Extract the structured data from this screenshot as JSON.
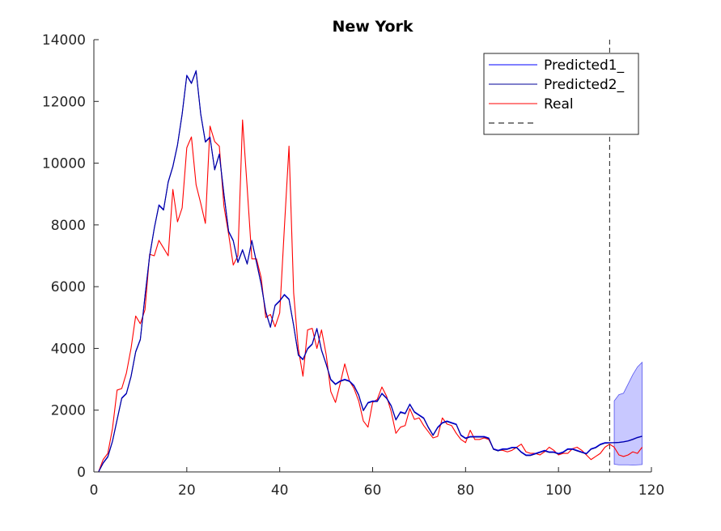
{
  "chart_data": {
    "type": "line",
    "title": "New York",
    "xlabel": "",
    "ylabel": "",
    "xlim": [
      0,
      120
    ],
    "ylim": [
      0,
      14000
    ],
    "xticks": [
      0,
      20,
      40,
      60,
      80,
      100,
      120
    ],
    "yticks": [
      0,
      2000,
      4000,
      6000,
      8000,
      10000,
      12000,
      14000
    ],
    "grid": false,
    "legend_position": "top-right",
    "vline": {
      "x": 111,
      "color": "#000000",
      "style": "dashed"
    },
    "series": [
      {
        "name": "Predicted1_",
        "color": "#0000ff",
        "x": [
          1,
          2,
          3,
          4,
          5,
          6,
          7,
          8,
          9,
          10,
          11,
          12,
          13,
          14,
          15,
          16,
          17,
          18,
          19,
          20,
          21,
          22,
          23,
          24,
          25,
          26,
          27,
          28,
          29,
          30,
          31,
          32,
          33,
          34,
          35,
          36,
          37,
          38,
          39,
          40,
          41,
          42,
          43,
          44,
          45,
          46,
          47,
          48,
          49,
          50,
          51,
          52,
          53,
          54,
          55,
          56,
          57,
          58,
          59,
          60,
          61,
          62,
          63,
          64,
          65,
          66,
          67,
          68,
          69,
          70,
          71,
          72,
          73,
          74,
          75,
          76,
          77,
          78,
          79,
          80,
          81,
          82,
          83,
          84,
          85,
          86,
          87,
          88,
          89,
          90,
          91,
          92,
          93,
          94,
          95,
          96,
          97,
          98,
          99,
          100,
          101,
          102,
          103,
          104,
          105,
          106,
          107,
          108,
          109,
          110,
          111,
          112,
          113,
          114,
          115,
          116,
          117,
          118
        ],
        "values": [
          0,
          300,
          500,
          1000,
          1700,
          2400,
          2550,
          3100,
          3900,
          4300,
          5700,
          7000,
          7900,
          8650,
          8500,
          9400,
          9900,
          10600,
          11600,
          12850,
          12600,
          13000,
          11600,
          10700,
          10850,
          9800,
          10300,
          9000,
          7800,
          7500,
          6800,
          7200,
          6750,
          7500,
          6800,
          6100,
          5200,
          4700,
          5400,
          5550,
          5750,
          5600,
          4750,
          3800,
          3650,
          4000,
          4150,
          4650,
          3950,
          3500,
          3000,
          2850,
          2950,
          3000,
          2950,
          2800,
          2500,
          2000,
          2250,
          2300,
          2300,
          2550,
          2400,
          2150,
          1700,
          1950,
          1900,
          2200,
          1950,
          1850,
          1750,
          1450,
          1200,
          1450,
          1600,
          1650,
          1600,
          1550,
          1200,
          1100,
          1150,
          1150,
          1150,
          1150,
          1100,
          750,
          700,
          750,
          750,
          800,
          800,
          650,
          550,
          550,
          600,
          650,
          700,
          650,
          650,
          600,
          650,
          750,
          750,
          700,
          650,
          600,
          750,
          800,
          900,
          950,
          950,
          950,
          960,
          980,
          1010,
          1060,
          1120,
          1160
        ]
      },
      {
        "name": "Predicted2_",
        "color": "#000099",
        "x": [
          1,
          2,
          3,
          4,
          5,
          6,
          7,
          8,
          9,
          10,
          11,
          12,
          13,
          14,
          15,
          16,
          17,
          18,
          19,
          20,
          21,
          22,
          23,
          24,
          25,
          26,
          27,
          28,
          29,
          30,
          31,
          32,
          33,
          34,
          35,
          36,
          37,
          38,
          39,
          40,
          41,
          42,
          43,
          44,
          45,
          46,
          47,
          48,
          49,
          50,
          51,
          52,
          53,
          54,
          55,
          56,
          57,
          58,
          59,
          60,
          61,
          62,
          63,
          64,
          65,
          66,
          67,
          68,
          69,
          70,
          71,
          72,
          73,
          74,
          75,
          76,
          77,
          78,
          79,
          80,
          81,
          82,
          83,
          84,
          85,
          86,
          87,
          88,
          89,
          90,
          91,
          92,
          93,
          94,
          95,
          96,
          97,
          98,
          99,
          100,
          101,
          102,
          103,
          104,
          105,
          106,
          107,
          108,
          109,
          110,
          111,
          112,
          113,
          114,
          115,
          116,
          117,
          118
        ],
        "values": [
          0,
          280,
          480,
          980,
          1680,
          2380,
          2530,
          3080,
          3880,
          4280,
          5680,
          6980,
          7880,
          8630,
          8480,
          9380,
          9880,
          10580,
          11580,
          12830,
          12580,
          12980,
          11580,
          10680,
          10830,
          9780,
          10280,
          8980,
          7780,
          7480,
          6780,
          7180,
          6730,
          7480,
          6780,
          6080,
          5180,
          4680,
          5380,
          5530,
          5730,
          5580,
          4730,
          3780,
          3630,
          3980,
          4130,
          4630,
          3930,
          3480,
          2980,
          2830,
          2930,
          2980,
          2930,
          2780,
          2480,
          1980,
          2230,
          2280,
          2280,
          2530,
          2380,
          2130,
          1680,
          1930,
          1880,
          2180,
          1930,
          1830,
          1730,
          1430,
          1180,
          1430,
          1580,
          1630,
          1580,
          1530,
          1180,
          1080,
          1130,
          1130,
          1130,
          1130,
          1080,
          730,
          680,
          730,
          730,
          780,
          780,
          630,
          530,
          530,
          580,
          630,
          680,
          630,
          630,
          580,
          630,
          730,
          730,
          680,
          630,
          580,
          730,
          780,
          880,
          930,
          940,
          945,
          950,
          970,
          1000,
          1050,
          1110,
          1150
        ]
      },
      {
        "name": "Real",
        "color": "#ff0000",
        "x": [
          1,
          2,
          3,
          4,
          5,
          6,
          7,
          8,
          9,
          10,
          11,
          12,
          13,
          14,
          15,
          16,
          17,
          18,
          19,
          20,
          21,
          22,
          23,
          24,
          25,
          26,
          27,
          28,
          29,
          30,
          31,
          32,
          33,
          34,
          35,
          36,
          37,
          38,
          39,
          40,
          41,
          42,
          43,
          44,
          45,
          46,
          47,
          48,
          49,
          50,
          51,
          52,
          53,
          54,
          55,
          56,
          57,
          58,
          59,
          60,
          61,
          62,
          63,
          64,
          65,
          66,
          67,
          68,
          69,
          70,
          71,
          72,
          73,
          74,
          75,
          76,
          77,
          78,
          79,
          80,
          81,
          82,
          83,
          84,
          85,
          86,
          87,
          88,
          89,
          90,
          91,
          92,
          93,
          94,
          95,
          96,
          97,
          98,
          99,
          100,
          101,
          102,
          103,
          104,
          105,
          106,
          107,
          108,
          109,
          110,
          111,
          112,
          113,
          114,
          115,
          116,
          117,
          118
        ],
        "values": [
          0,
          400,
          600,
          1400,
          2650,
          2700,
          3200,
          4000,
          5050,
          4800,
          5250,
          7050,
          7000,
          7500,
          7250,
          7000,
          9150,
          8100,
          8550,
          10500,
          10850,
          9300,
          8700,
          8050,
          11200,
          10700,
          10550,
          8600,
          7700,
          6700,
          7000,
          11400,
          9200,
          6900,
          6900,
          6300,
          5000,
          5100,
          4700,
          5150,
          7900,
          10550,
          5800,
          4000,
          3100,
          4600,
          4650,
          4000,
          4600,
          3800,
          2600,
          2250,
          2850,
          3500,
          2950,
          2700,
          2300,
          1650,
          1450,
          2250,
          2350,
          2750,
          2450,
          1950,
          1250,
          1450,
          1500,
          2050,
          1700,
          1750,
          1500,
          1300,
          1100,
          1150,
          1750,
          1550,
          1500,
          1250,
          1050,
          950,
          1350,
          1050,
          1050,
          1100,
          1050,
          750,
          700,
          700,
          650,
          700,
          800,
          900,
          650,
          600,
          600,
          550,
          650,
          800,
          700,
          550,
          600,
          600,
          750,
          800,
          700,
          550,
          400,
          500,
          600,
          800,
          900,
          800,
          550,
          500,
          550,
          650,
          600,
          800
        ]
      },
      {
        "name": "",
        "color": "#000000",
        "style": "dashed"
      }
    ],
    "band": {
      "color": "#aaaaff",
      "x": [
        112,
        113,
        114,
        115,
        116,
        117,
        118
      ],
      "upper": [
        2300,
        2500,
        2550,
        2850,
        3150,
        3400,
        3550
      ],
      "lower": [
        250,
        230,
        230,
        230,
        220,
        230,
        240
      ]
    }
  }
}
